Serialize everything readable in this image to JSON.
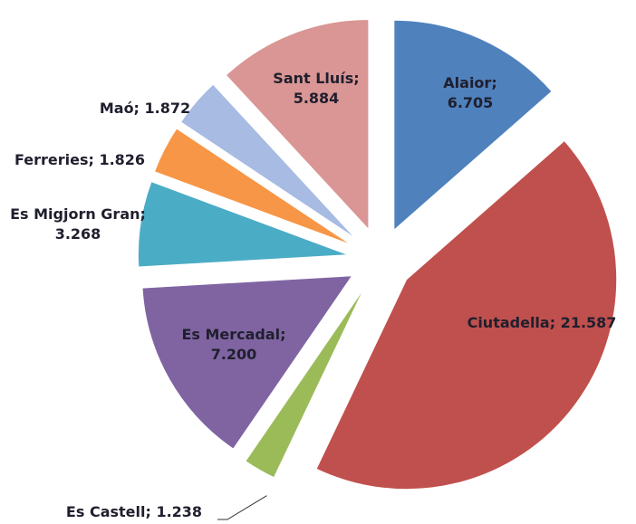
{
  "chart_data": {
    "type": "pie",
    "values": [
      6705,
      21587,
      1238,
      7200,
      3268,
      1826,
      1872,
      5884
    ],
    "value_labels": [
      "Alaior; 6.705",
      "Ciutadella; 21.587",
      "Es Castell; 1.238",
      "Es Mercadal; 7.200",
      "Es Migjorn Gran; 3.268",
      "Ferreries; 1.826",
      "Maó; 1.872",
      "Sant Lluís; 5.884"
    ],
    "colors": [
      "#4f81bd",
      "#c0504d",
      "#9bbb59",
      "#8064a2",
      "#4bacc6",
      "#f79646",
      "#a7bbe3",
      "#d99694"
    ]
  }
}
